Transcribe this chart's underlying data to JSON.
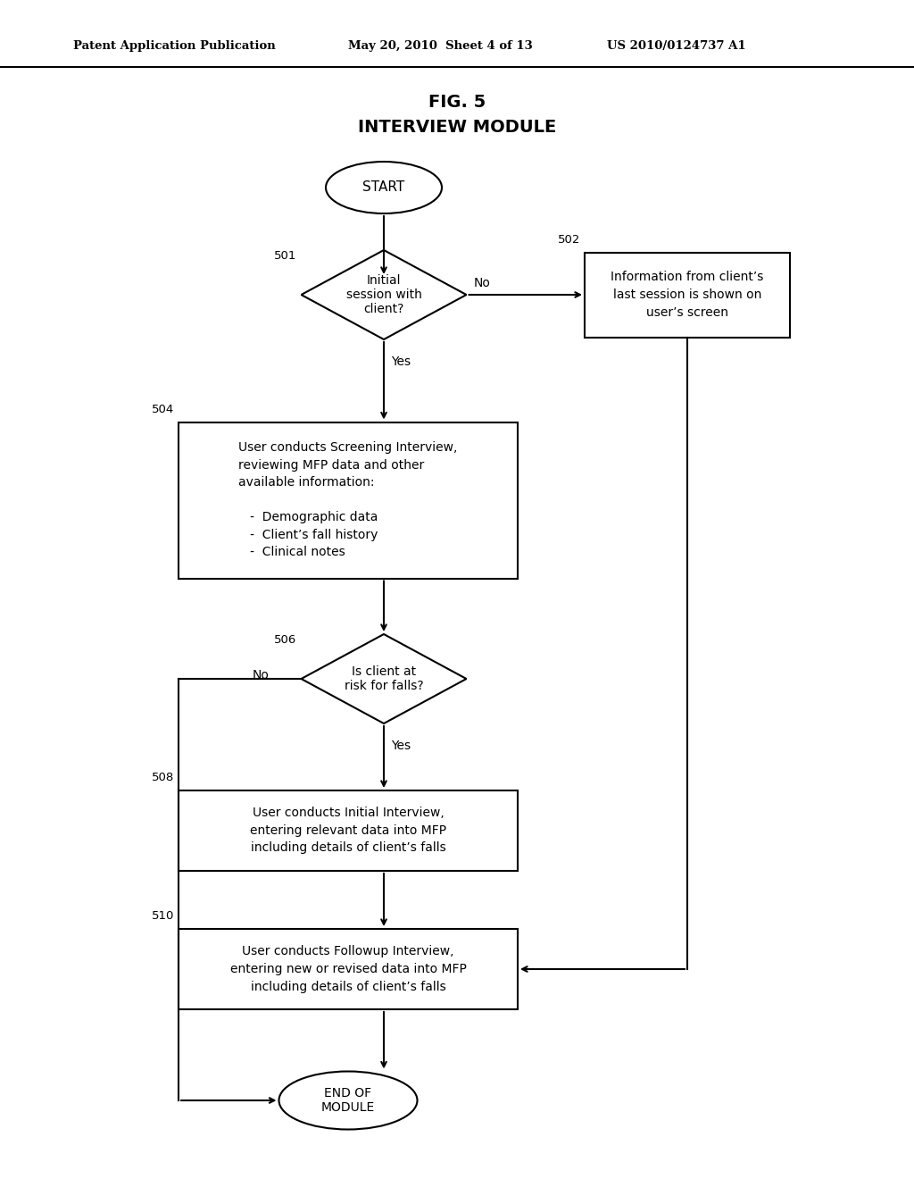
{
  "header_left": "Patent Application Publication",
  "header_mid": "May 20, 2010  Sheet 4 of 13",
  "header_right": "US 2010/0124737 A1",
  "title_line1": "FIG. 5",
  "title_line2": "INTERVIEW MODULE",
  "background_color": "#ffffff",
  "line_color": "#000000",
  "text_color": "#000000",
  "start_text": "START",
  "end_text": "END OF\nMODULE",
  "d501_text": "Initial\nsession with\nclient?",
  "d501_label": "501",
  "b502_text": "Information from client’s\nlast session is shown on\nuser’s screen",
  "b502_label": "502",
  "b504_text": "User conducts Screening Interview,\nreviewing MFP data and other\navailable information:\n\n   -  Demographic data\n   -  Client’s fall history\n   -  Clinical notes",
  "b504_label": "504",
  "d506_text": "Is client at\nrisk for falls?",
  "d506_label": "506",
  "b508_text": "User conducts Initial Interview,\nentering relevant data into MFP\nincluding details of client’s falls",
  "b508_label": "508",
  "b510_text": "User conducts Followup Interview,\nentering new or revised data into MFP\nincluding details of client’s falls",
  "b510_label": "510",
  "yes_text": "Yes",
  "no_text": "No"
}
